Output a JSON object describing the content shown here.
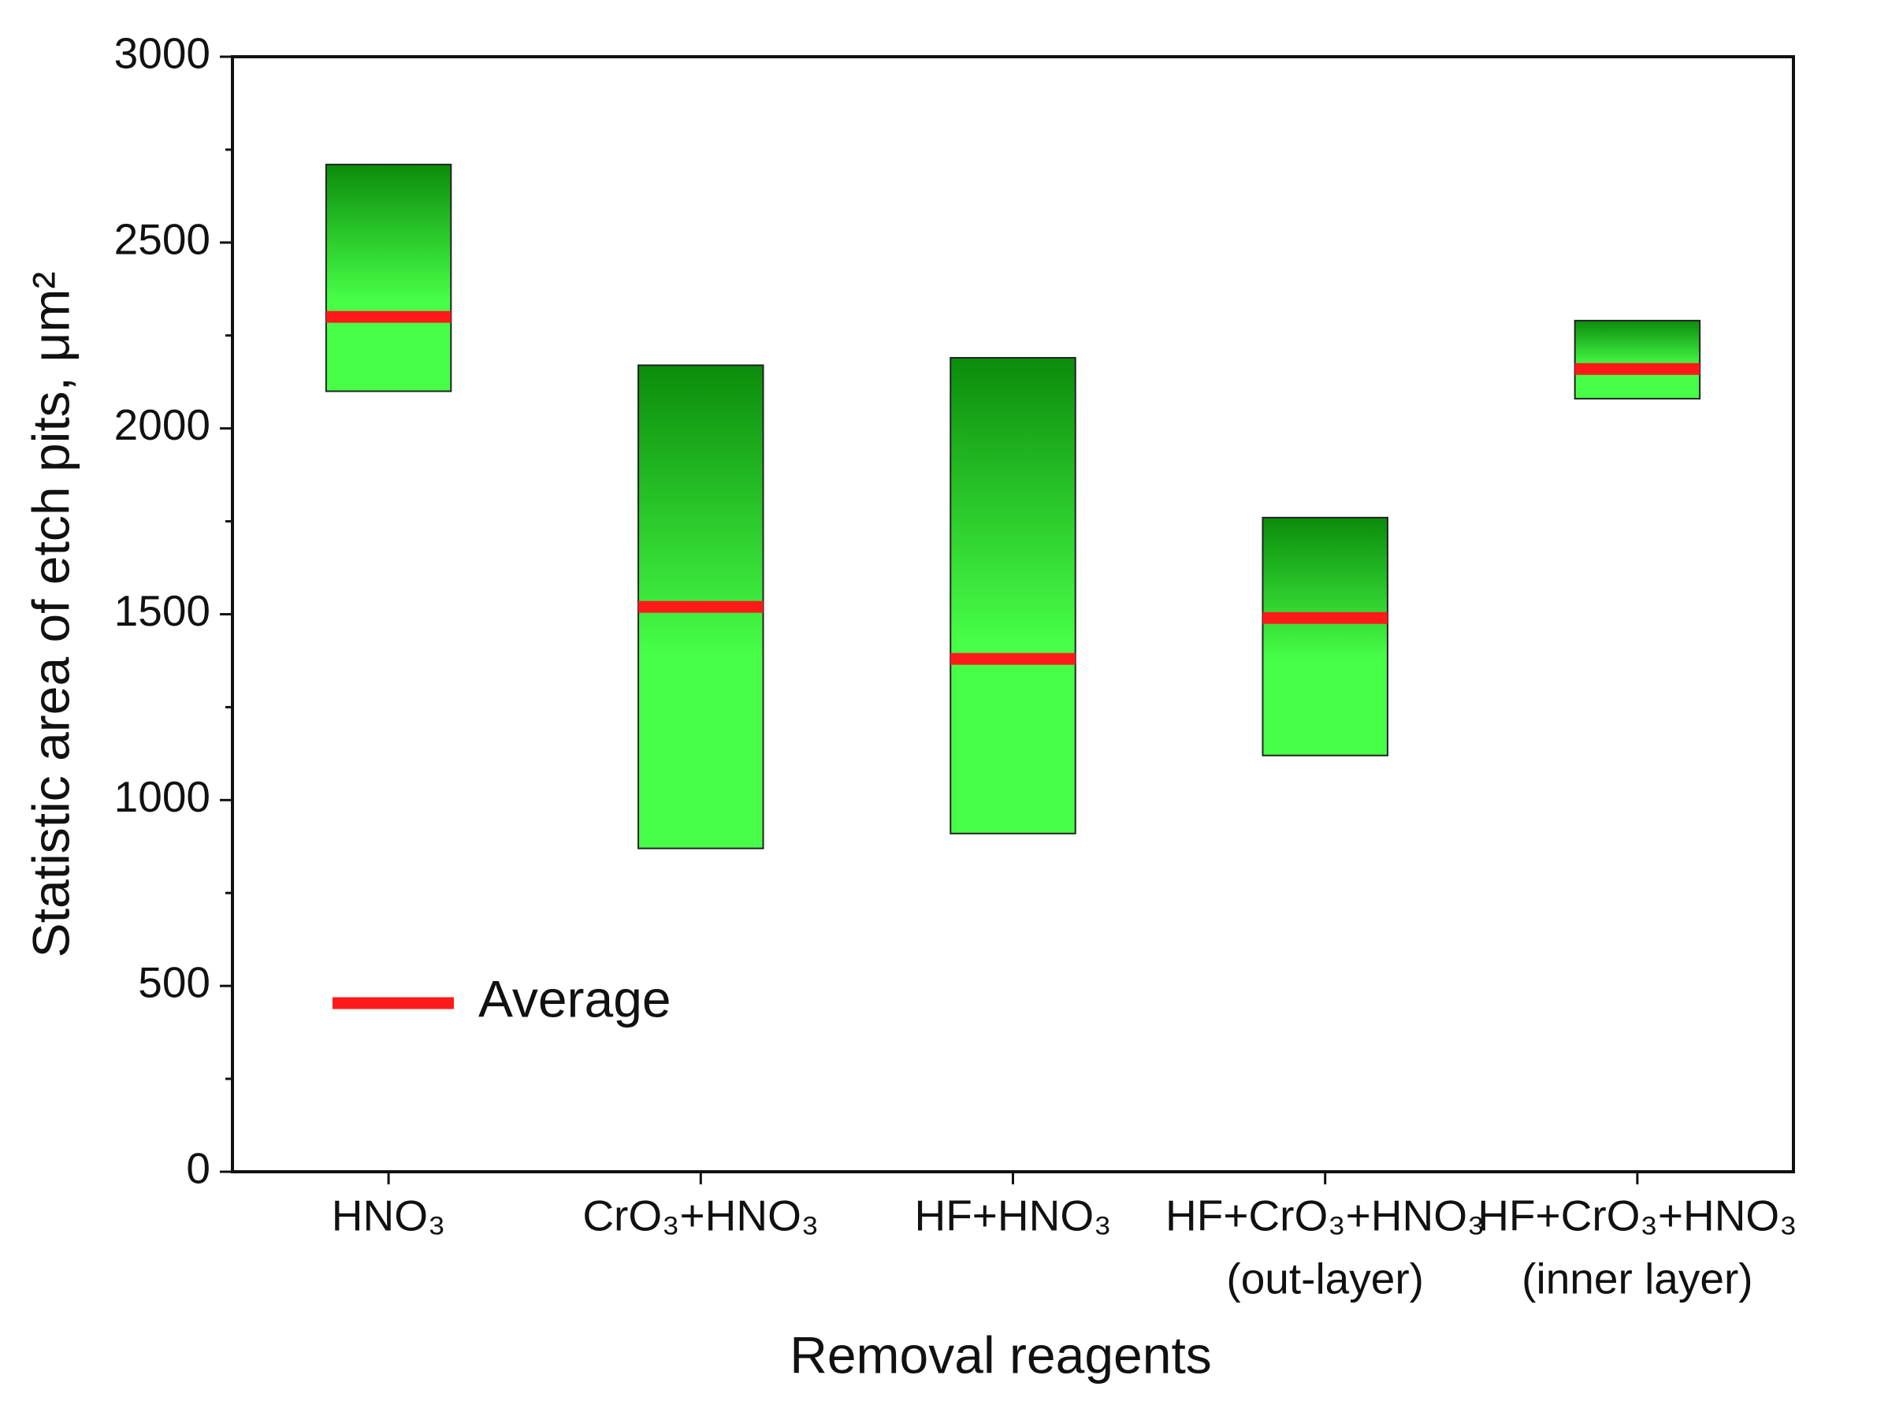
{
  "chart_data": {
    "type": "floating_bar",
    "ylabel": "Statistic area of etch pits, μm²",
    "xlabel": "Removal reagents",
    "categories": [
      [
        "HNO₃"
      ],
      [
        "CrO₃+HNO₃"
      ],
      [
        "HF+HNO₃"
      ],
      [
        "HF+CrO₃+HNO₃",
        "(out-layer)"
      ],
      [
        "HF+CrO₃+HNO₃",
        "(inner layer)"
      ]
    ],
    "min": [
      2100,
      870,
      910,
      1120,
      2080
    ],
    "max": [
      2710,
      2170,
      2190,
      1760,
      2290
    ],
    "bar_colors": [
      "#0b8c0b",
      "#48ff48"
    ],
    "average": {
      "name": "Average",
      "color": "#ff1a1a",
      "values": [
        2300,
        1520,
        1380,
        1490,
        2160
      ]
    },
    "ylim": [
      0,
      3000
    ],
    "yticks": [
      0,
      500,
      1000,
      1500,
      2000,
      2500,
      3000
    ],
    "minor_yticks": [
      250,
      750,
      1250,
      1750,
      2250,
      2750
    ],
    "legend": "lower left"
  }
}
